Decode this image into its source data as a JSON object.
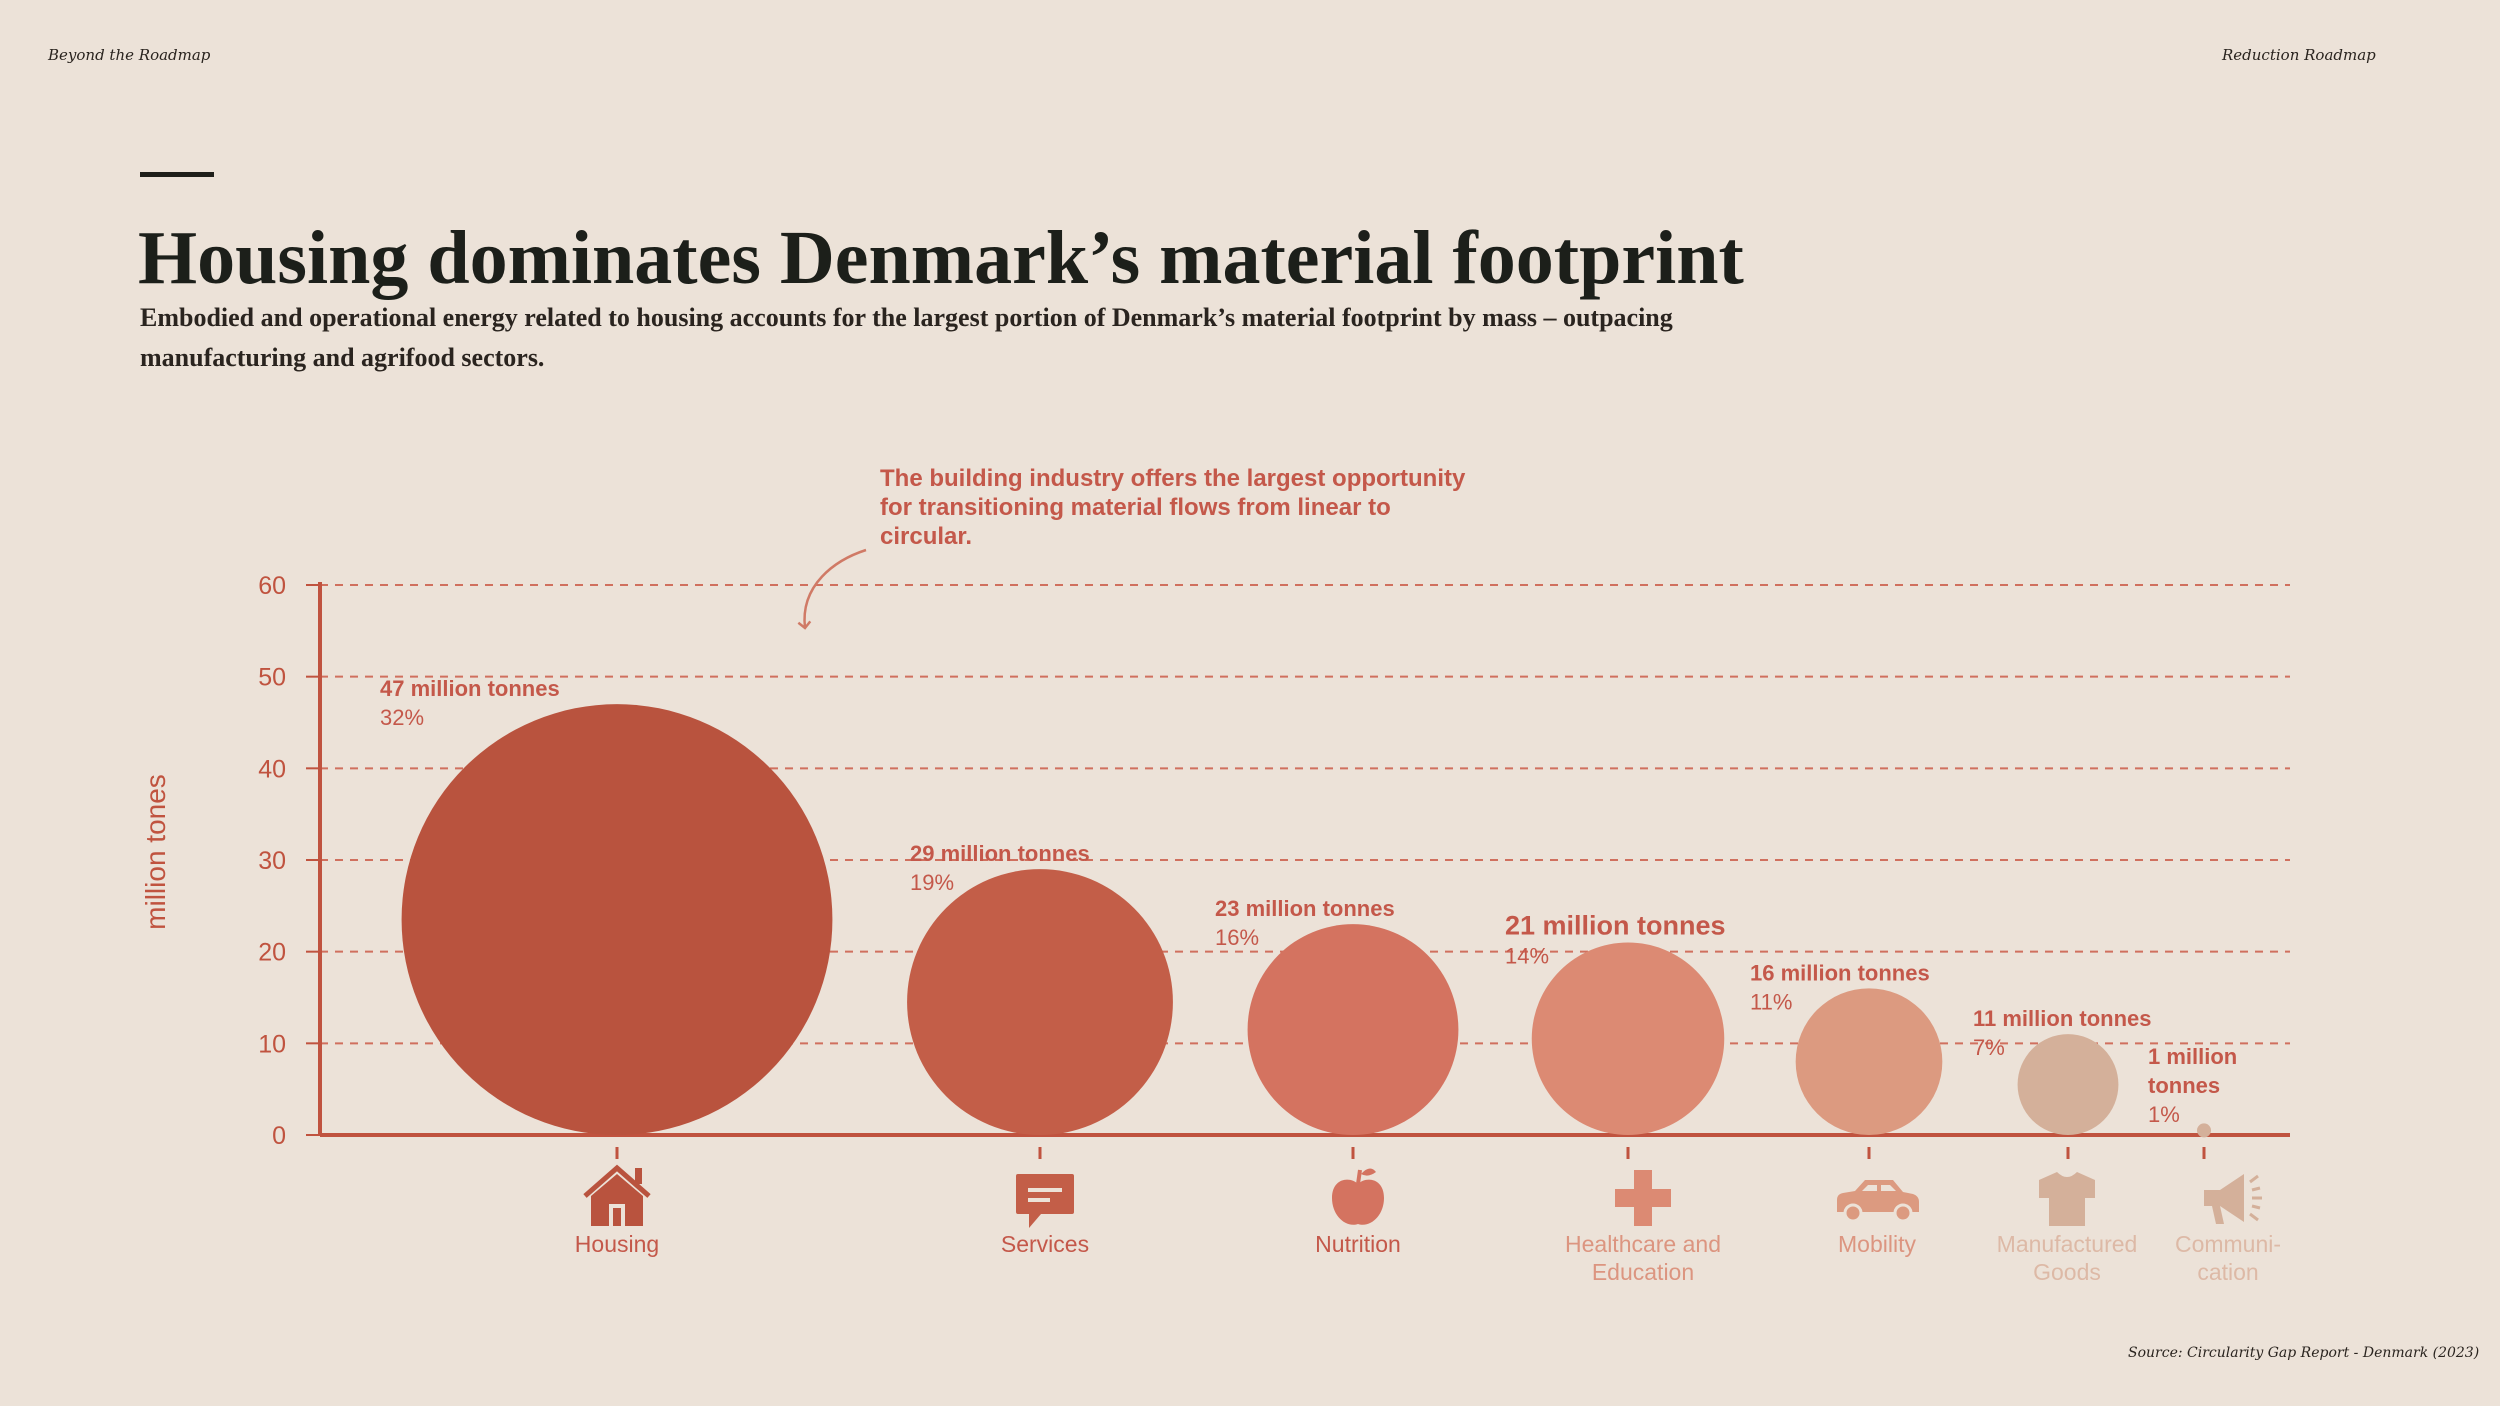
{
  "header": {
    "left": "Beyond the Roadmap",
    "right": "Reduction Roadmap"
  },
  "title": "Housing dominates Denmark’s material footprint",
  "subtitle": "Embodied and operational energy related to housing accounts for the largest portion of Denmark’s material footprint by mass – outpacing manufacturing and agrifood sectors.",
  "callout": "The building industry offers the largest opportunity for transitioning material flows from linear to circular.",
  "source": "Source: Circularity Gap Report - Denmark (2023)",
  "chart_data": {
    "type": "bubble",
    "ylabel": "million tones",
    "ylim": [
      0,
      60
    ],
    "yticks": [
      0,
      10,
      20,
      30,
      40,
      50,
      60
    ],
    "grid": "dashed horizontal",
    "categories": [
      {
        "name": "Housing",
        "icon": "house-icon",
        "value": 47,
        "value_label": "47 million tonnes",
        "share_label": "32%",
        "color": "#b9533e"
      },
      {
        "name": "Services",
        "icon": "chat-icon",
        "value": 29,
        "value_label": "29 million tonnes",
        "share_label": "19%",
        "color": "#c35e48"
      },
      {
        "name": "Nutrition",
        "icon": "apple-icon",
        "value": 23,
        "value_label": "23 million tonnes",
        "share_label": "16%",
        "color": "#d47360"
      },
      {
        "name": "Healthcare and Education",
        "icon": "cross-icon",
        "value": 21,
        "value_label": "21 million tonnes",
        "share_label": "14%",
        "color": "#dc8a73"
      },
      {
        "name": "Mobility",
        "icon": "car-icon",
        "value": 16,
        "value_label": "16 million tonnes",
        "share_label": "11%",
        "color": "#dc9a80"
      },
      {
        "name": "Manufactured Goods",
        "icon": "shirt-icon",
        "value": 11,
        "value_label": "11 million tonnes",
        "share_label": "7%",
        "color": "#d4b09a"
      },
      {
        "name": "Communi- cation",
        "icon": "megaphone-icon",
        "value": 1,
        "value_label": "1 million tonnes",
        "share_label": "1%",
        "color": "#d4b09a"
      }
    ],
    "colors": {
      "axis": "#c0533f",
      "ink": "#c0533f"
    }
  }
}
